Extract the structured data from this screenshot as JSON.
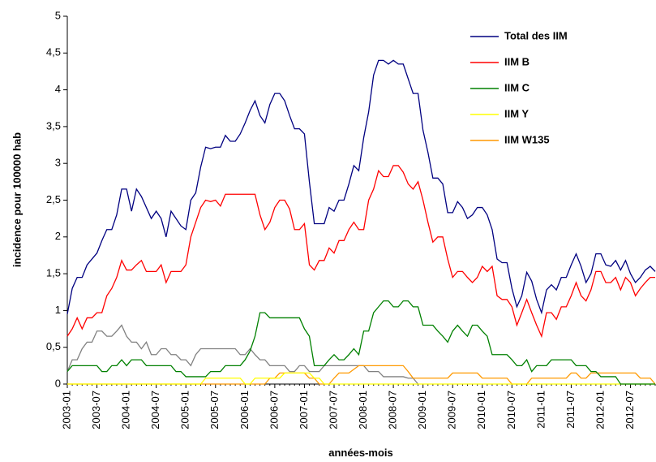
{
  "chart_data": {
    "type": "line",
    "x_label": "années-mois",
    "y_label": "incidence pour 100000 hab",
    "categories": [
      "2003-01",
      null,
      null,
      null,
      null,
      null,
      "2003-07",
      null,
      null,
      null,
      null,
      null,
      "2004-01",
      null,
      null,
      null,
      null,
      null,
      "2004-07",
      null,
      null,
      null,
      null,
      null,
      "2005-01",
      null,
      null,
      null,
      null,
      null,
      "2005-07",
      null,
      null,
      null,
      null,
      null,
      "2006-01",
      null,
      null,
      null,
      null,
      null,
      "2006-07",
      null,
      null,
      null,
      null,
      null,
      "2007-01",
      null,
      null,
      null,
      null,
      null,
      "2007-07",
      null,
      null,
      null,
      null,
      null,
      "2008-01",
      null,
      null,
      null,
      null,
      null,
      "2008-07",
      null,
      null,
      null,
      null,
      null,
      "2009-01",
      null,
      null,
      null,
      null,
      null,
      "2009-07",
      null,
      null,
      null,
      null,
      null,
      "2010-01",
      null,
      null,
      null,
      null,
      null,
      "2010-07",
      null,
      null,
      null,
      null,
      null,
      "2011-01",
      null,
      null,
      null,
      null,
      null,
      "2011-07",
      null,
      null,
      null,
      null,
      null,
      "2012-01",
      null,
      null,
      null,
      null,
      null,
      "2012-07",
      null,
      null,
      null,
      null,
      null
    ],
    "ylim": [
      0,
      5
    ],
    "yticks": [
      0,
      {
        "value": 0.5,
        "label": "0,5"
      },
      1,
      {
        "value": 1.5,
        "label": "1,5"
      },
      2,
      {
        "value": 2.5,
        "label": "2,5"
      },
      3,
      {
        "value": 3.5,
        "label": "3,5"
      },
      4,
      {
        "value": 4.5,
        "label": "4,5"
      },
      5
    ],
    "legend": "upper right",
    "series": [
      {
        "name": "Total des IIM",
        "color": "#000080",
        "values": [
          0.95,
          1.3,
          1.45,
          1.45,
          1.62,
          1.7,
          1.78,
          1.95,
          2.1,
          2.1,
          2.3,
          2.65,
          2.65,
          2.35,
          2.65,
          2.55,
          2.4,
          2.25,
          2.35,
          2.25,
          2.0,
          2.35,
          2.25,
          2.15,
          2.1,
          2.5,
          2.6,
          2.95,
          3.22,
          3.2,
          3.22,
          3.22,
          3.38,
          3.3,
          3.3,
          3.4,
          3.55,
          3.72,
          3.85,
          3.65,
          3.55,
          3.8,
          3.95,
          3.95,
          3.85,
          3.65,
          3.47,
          3.47,
          3.4,
          2.75,
          2.18,
          2.18,
          2.18,
          2.4,
          2.35,
          2.5,
          2.5,
          2.72,
          2.97,
          2.9,
          3.35,
          3.7,
          4.2,
          4.4,
          4.4,
          4.35,
          4.4,
          4.35,
          4.35,
          4.15,
          3.95,
          3.95,
          3.45,
          3.15,
          2.8,
          2.8,
          2.72,
          2.33,
          2.33,
          2.48,
          2.4,
          2.25,
          2.3,
          2.4,
          2.4,
          2.3,
          2.1,
          1.7,
          1.65,
          1.65,
          1.3,
          1.05,
          1.2,
          1.52,
          1.4,
          1.15,
          0.97,
          1.28,
          1.35,
          1.28,
          1.45,
          1.45,
          1.62,
          1.77,
          1.6,
          1.38,
          1.5,
          1.77,
          1.77,
          1.62,
          1.6,
          1.68,
          1.55,
          1.68,
          1.5,
          1.38,
          1.45,
          1.55,
          1.6,
          1.53
        ]
      },
      {
        "name": "IIM B",
        "color": "#ff0000",
        "values": [
          0.65,
          0.75,
          0.9,
          0.75,
          0.9,
          0.9,
          0.97,
          0.97,
          1.2,
          1.3,
          1.45,
          1.68,
          1.55,
          1.55,
          1.62,
          1.68,
          1.53,
          1.53,
          1.53,
          1.62,
          1.38,
          1.53,
          1.53,
          1.53,
          1.62,
          2.0,
          2.2,
          2.4,
          2.5,
          2.48,
          2.5,
          2.42,
          2.58,
          2.58,
          2.58,
          2.58,
          2.58,
          2.58,
          2.58,
          2.3,
          2.1,
          2.2,
          2.4,
          2.5,
          2.5,
          2.38,
          2.1,
          2.1,
          2.18,
          1.62,
          1.55,
          1.68,
          1.68,
          1.85,
          1.78,
          1.95,
          1.95,
          2.1,
          2.2,
          2.1,
          2.1,
          2.5,
          2.65,
          2.9,
          2.82,
          2.82,
          2.97,
          2.97,
          2.88,
          2.72,
          2.65,
          2.75,
          2.5,
          2.2,
          1.93,
          2.0,
          2.0,
          1.7,
          1.45,
          1.53,
          1.53,
          1.45,
          1.38,
          1.45,
          1.6,
          1.53,
          1.6,
          1.2,
          1.15,
          1.15,
          1.05,
          0.8,
          0.97,
          1.15,
          0.97,
          0.8,
          0.65,
          0.97,
          0.97,
          0.88,
          1.05,
          1.05,
          1.2,
          1.38,
          1.2,
          1.13,
          1.28,
          1.53,
          1.53,
          1.38,
          1.38,
          1.45,
          1.28,
          1.45,
          1.38,
          1.2,
          1.3,
          1.38,
          1.45,
          1.45
        ]
      },
      {
        "name": "IIM C",
        "color": "#008000",
        "values": [
          0.17,
          0.25,
          0.25,
          0.25,
          0.25,
          0.25,
          0.25,
          0.17,
          0.17,
          0.25,
          0.25,
          0.33,
          0.25,
          0.33,
          0.33,
          0.33,
          0.25,
          0.25,
          0.25,
          0.25,
          0.25,
          0.25,
          0.17,
          0.17,
          0.1,
          0.1,
          0.1,
          0.1,
          0.1,
          0.17,
          0.17,
          0.17,
          0.25,
          0.25,
          0.25,
          0.25,
          0.33,
          0.45,
          0.65,
          0.97,
          0.97,
          0.9,
          0.9,
          0.9,
          0.9,
          0.9,
          0.9,
          0.9,
          0.75,
          0.65,
          0.25,
          0.25,
          0.25,
          0.33,
          0.4,
          0.33,
          0.33,
          0.4,
          0.48,
          0.4,
          0.72,
          0.72,
          0.97,
          1.05,
          1.13,
          1.13,
          1.05,
          1.05,
          1.13,
          1.13,
          1.05,
          1.05,
          0.8,
          0.8,
          0.8,
          0.72,
          0.65,
          0.57,
          0.72,
          0.8,
          0.72,
          0.65,
          0.8,
          0.8,
          0.72,
          0.65,
          0.4,
          0.4,
          0.4,
          0.4,
          0.33,
          0.25,
          0.25,
          0.33,
          0.17,
          0.25,
          0.25,
          0.25,
          0.33,
          0.33,
          0.33,
          0.33,
          0.33,
          0.25,
          0.25,
          0.25,
          0.17,
          0.17,
          0.1,
          0.1,
          0.1,
          0.1,
          0,
          0,
          0,
          0,
          0,
          0,
          0,
          0
        ]
      },
      {
        "name": "IIM Y",
        "color": "#ffff00",
        "values": [
          0,
          0,
          0,
          0,
          0,
          0,
          0,
          0,
          0,
          0,
          0,
          0,
          0,
          0,
          0,
          0,
          0,
          0,
          0,
          0,
          0,
          0,
          0,
          0,
          0,
          0,
          0,
          0,
          0.08,
          0.08,
          0.08,
          0.08,
          0.08,
          0.08,
          0.08,
          0.08,
          0,
          0,
          0.08,
          0.08,
          0.08,
          0.08,
          0.08,
          0.08,
          0.15,
          0.15,
          0.15,
          0.15,
          0.15,
          0.15,
          0.08,
          0.08,
          0,
          0,
          0,
          0,
          0,
          0,
          0,
          0,
          0,
          0,
          0,
          0,
          0,
          0,
          0,
          0,
          0,
          0,
          0,
          0,
          0,
          0,
          0,
          0,
          0,
          0,
          0,
          0,
          0,
          0,
          0,
          0,
          0,
          0,
          0,
          0,
          0,
          0,
          0,
          0,
          0,
          0,
          0,
          0,
          0,
          0,
          0,
          0,
          0,
          0,
          0,
          0,
          0,
          0,
          0,
          0,
          0,
          0,
          0,
          0,
          0,
          0,
          0,
          0,
          0,
          0,
          0,
          0
        ]
      },
      {
        "name": "IIM W135",
        "color": "#ff9900",
        "values": [
          0,
          0,
          0,
          0,
          0,
          0,
          0,
          0,
          0,
          0,
          0,
          0,
          0,
          0,
          0,
          0,
          0,
          0,
          0,
          0,
          0,
          0,
          0,
          0,
          0,
          0,
          0,
          0,
          0,
          0,
          0,
          0,
          0,
          0,
          0,
          0,
          0,
          0,
          0,
          0,
          0,
          0.08,
          0.08,
          0.15,
          0.15,
          0.15,
          0.15,
          0.15,
          0.15,
          0.08,
          0.08,
          0,
          0,
          0,
          0.08,
          0.15,
          0.15,
          0.15,
          0.2,
          0.25,
          0.25,
          0.25,
          0.25,
          0.25,
          0.25,
          0.25,
          0.25,
          0.25,
          0.25,
          0.17,
          0.08,
          0.08,
          0.08,
          0.08,
          0.08,
          0.08,
          0.08,
          0.08,
          0.15,
          0.15,
          0.15,
          0.15,
          0.15,
          0.15,
          0.08,
          0.08,
          0.08,
          0.08,
          0.08,
          0.08,
          0,
          0,
          0,
          0,
          0.08,
          0.08,
          0.08,
          0.08,
          0.08,
          0.08,
          0.08,
          0.08,
          0.15,
          0.15,
          0.08,
          0.08,
          0.15,
          0.15,
          0.15,
          0.15,
          0.15,
          0.15,
          0.15,
          0.15,
          0.15,
          0.15,
          0.08,
          0.08,
          0.08,
          0
        ]
      },
      {
        "color": "#808080",
        "values": [
          0.17,
          0.33,
          0.33,
          0.48,
          0.57,
          0.57,
          0.72,
          0.72,
          0.65,
          0.65,
          0.72,
          0.8,
          0.65,
          0.57,
          0.57,
          0.48,
          0.57,
          0.4,
          0.4,
          0.48,
          0.48,
          0.4,
          0.4,
          0.33,
          0.33,
          0.25,
          0.4,
          0.48,
          0.48,
          0.48,
          0.48,
          0.48,
          0.48,
          0.48,
          0.48,
          0.4,
          0.4,
          0.48,
          0.4,
          0.33,
          0.33,
          0.25,
          0.25,
          0.25,
          0.25,
          0.17,
          0.17,
          0.25,
          0.25,
          0.17,
          0.17,
          0.17,
          0.25,
          0.25,
          0.25,
          0.25,
          0.25,
          0.25,
          0.25,
          0.25,
          0.25,
          0.17,
          0.17,
          0.17,
          0.1,
          0.1,
          0.1,
          0.1,
          0.1,
          0.08,
          0.08,
          0,
          null,
          null,
          null,
          null,
          null,
          null,
          null,
          null,
          null,
          null,
          null,
          null,
          null,
          null,
          null,
          null,
          null,
          null,
          null,
          null,
          null,
          null,
          null,
          null,
          null,
          null,
          null,
          null,
          null,
          null,
          null,
          null,
          null,
          null,
          null,
          null,
          null,
          null,
          null,
          null,
          null,
          null,
          null,
          null,
          null,
          null,
          null,
          null
        ]
      }
    ]
  }
}
